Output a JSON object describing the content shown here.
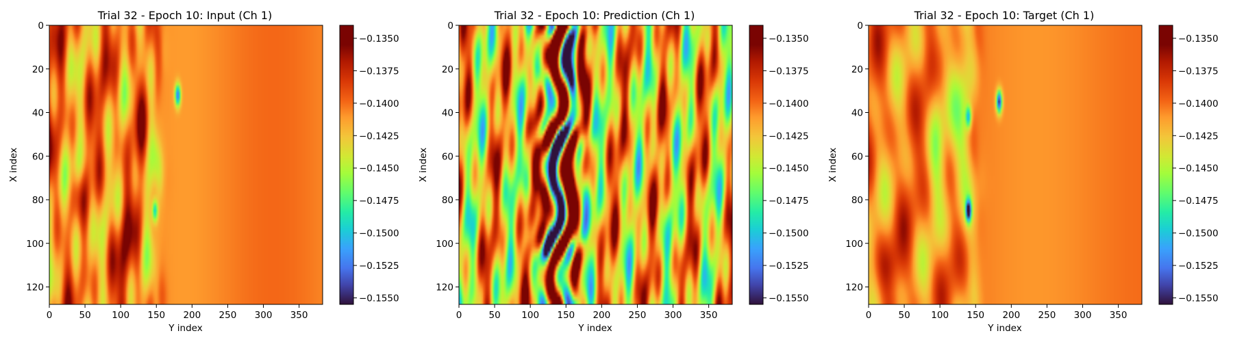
{
  "chart_data": [
    {
      "type": "heatmap",
      "title": "Trial 32 - Epoch 10: Input (Ch 1)",
      "xlabel": "Y index",
      "ylabel": "X index",
      "xlim": [
        0,
        383
      ],
      "ylim": [
        128,
        0
      ],
      "xticks": [
        "0",
        "50",
        "100",
        "150",
        "200",
        "250",
        "300",
        "350"
      ],
      "yticks": [
        "0",
        "20",
        "40",
        "60",
        "80",
        "100",
        "120"
      ],
      "colormap": "turbo",
      "colorbar": {
        "vmin": -0.1555,
        "vmax": -0.134,
        "ticks": [
          "−0.1350",
          "−0.1375",
          "−0.1400",
          "−0.1425",
          "−0.1450",
          "−0.1475",
          "−0.1500",
          "−0.1525",
          "−0.1550"
        ]
      },
      "features": {
        "background_value": -0.1405,
        "front_position_y": 150,
        "left_region": "turbulent warm streaks (orange/red, green patches) for y < 150",
        "right_region": "uniform orange field for y > 160",
        "blue_spots": [
          {
            "x": 32,
            "y": 180,
            "value": -0.152
          },
          {
            "x": 85,
            "y": 148,
            "value": -0.149
          }
        ]
      }
    },
    {
      "type": "heatmap",
      "title": "Trial 32 - Epoch 10: Prediction (Ch 1)",
      "xlabel": "Y index",
      "ylabel": "X index",
      "xlim": [
        0,
        383
      ],
      "ylim": [
        128,
        0
      ],
      "xticks": [
        "0",
        "50",
        "100",
        "150",
        "200",
        "250",
        "300",
        "350"
      ],
      "yticks": [
        "0",
        "20",
        "40",
        "60",
        "80",
        "100",
        "120"
      ],
      "colormap": "turbo",
      "colorbar": {
        "vmin": -0.1555,
        "vmax": -0.134,
        "ticks": [
          "−0.1350",
          "−0.1375",
          "−0.1400",
          "−0.1425",
          "−0.1450",
          "−0.1475",
          "−0.1500",
          "−0.1525",
          "−0.1550"
        ]
      },
      "features": {
        "background_value": -0.1425,
        "left_region": "alternating red/orange and green/blue vertical streaks across whole width",
        "central_band": "saturated dark-purple and dark-red bands between y 90 and y 190",
        "right_region": "mixed orange/green/cyan streaks"
      }
    },
    {
      "type": "heatmap",
      "title": "Trial 32 - Epoch 10: Target (Ch 1)",
      "xlabel": "Y index",
      "ylabel": "X index",
      "xlim": [
        0,
        383
      ],
      "ylim": [
        128,
        0
      ],
      "xticks": [
        "0",
        "50",
        "100",
        "150",
        "200",
        "250",
        "300",
        "350"
      ],
      "yticks": [
        "0",
        "20",
        "40",
        "60",
        "80",
        "100",
        "120"
      ],
      "colormap": "turbo",
      "colorbar": {
        "vmin": -0.1555,
        "vmax": -0.134,
        "ticks": [
          "−0.1350",
          "−0.1375",
          "−0.1400",
          "−0.1425",
          "−0.1450",
          "−0.1475",
          "−0.1500",
          "−0.1525",
          "−0.1550"
        ]
      },
      "features": {
        "background_value": -0.1405,
        "front_position_y": 150,
        "left_region": "orange/red streaks with large green/cyan lobe near y 140",
        "right_region": "uniform orange field for y > 160",
        "blue_spots": [
          {
            "x": 35,
            "y": 183,
            "value": -0.1545
          },
          {
            "x": 85,
            "y": 140,
            "value": -0.1545
          },
          {
            "x": 42,
            "y": 140,
            "value": -0.149
          }
        ]
      }
    }
  ]
}
